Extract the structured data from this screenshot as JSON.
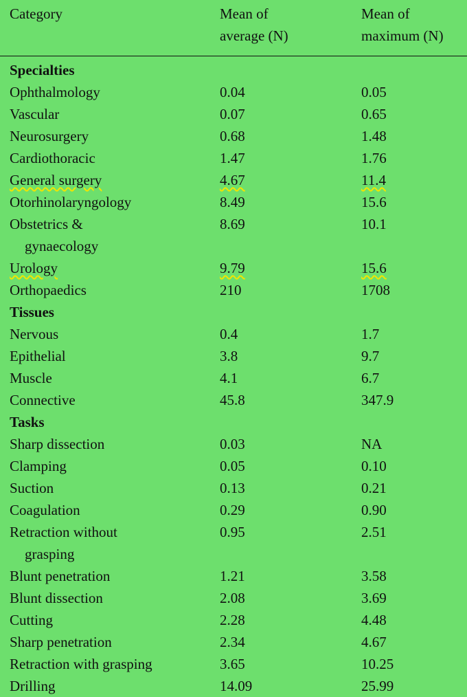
{
  "table": {
    "headers": {
      "category": "Category",
      "mean_average": "Mean of\naverage (N)",
      "mean_maximum": "Mean of\nmaximum (N)"
    },
    "sections": [
      {
        "title": "Specialties",
        "rows": [
          {
            "category": "Ophthalmology",
            "average": "0.04",
            "maximum": "0.05"
          },
          {
            "category": "Vascular",
            "average": "0.07",
            "maximum": "0.65"
          },
          {
            "category": "Neurosurgery",
            "average": "0.68",
            "maximum": "1.48"
          },
          {
            "category": "Cardiothoracic",
            "average": "1.47",
            "maximum": "1.76"
          },
          {
            "category": "General surgery",
            "average": "4.67",
            "maximum": "11.4",
            "squiggle": true
          },
          {
            "category": "Otorhinolaryngology",
            "average": "8.49",
            "maximum": "15.6"
          },
          {
            "category": "Obstetrics &",
            "category_cont": "gynaecology",
            "average": "8.69",
            "maximum": "10.1"
          },
          {
            "category": "Urology",
            "average": "9.79",
            "maximum": "15.6",
            "squiggle": true
          },
          {
            "category": "Orthopaedics",
            "average": "210",
            "maximum": "1708"
          }
        ]
      },
      {
        "title": "Tissues",
        "rows": [
          {
            "category": "Nervous",
            "average": "0.4",
            "maximum": "1.7"
          },
          {
            "category": "Epithelial",
            "average": "3.8",
            "maximum": "9.7"
          },
          {
            "category": "Muscle",
            "average": "4.1",
            "maximum": "6.7"
          },
          {
            "category": "Connective",
            "average": "45.8",
            "maximum": "347.9"
          }
        ]
      },
      {
        "title": "Tasks",
        "rows": [
          {
            "category": "Sharp dissection",
            "average": "0.03",
            "maximum": "NA"
          },
          {
            "category": "Clamping",
            "average": "0.05",
            "maximum": "0.10"
          },
          {
            "category": "Suction",
            "average": "0.13",
            "maximum": "0.21"
          },
          {
            "category": "Coagulation",
            "average": "0.29",
            "maximum": "0.90"
          },
          {
            "category": "Retraction without",
            "category_cont": "grasping",
            "average": "0.95",
            "maximum": "2.51"
          },
          {
            "category": "Blunt penetration",
            "average": "1.21",
            "maximum": "3.58"
          },
          {
            "category": "Blunt dissection",
            "average": "2.08",
            "maximum": "3.69"
          },
          {
            "category": "Cutting",
            "average": "2.28",
            "maximum": "4.48"
          },
          {
            "category": "Sharp penetration",
            "average": "2.34",
            "maximum": "4.67"
          },
          {
            "category": "Retraction with grasping",
            "average": "3.65",
            "maximum": "10.25"
          },
          {
            "category": "Drilling",
            "average": "14.09",
            "maximum": "25.99"
          }
        ]
      }
    ]
  },
  "colors": {
    "background": "#6ddf6d",
    "spellcheck_squiggle": "#f2e500"
  }
}
